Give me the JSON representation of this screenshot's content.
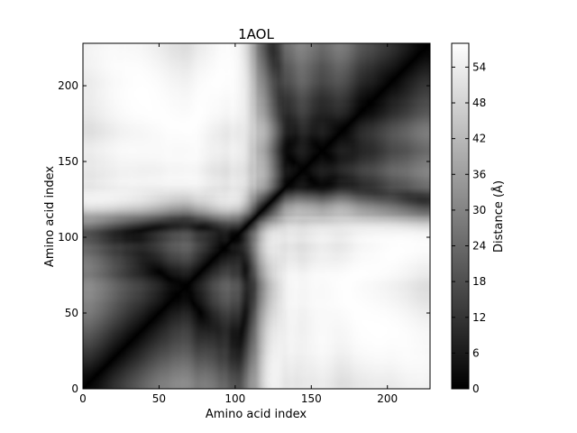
{
  "chart_data": {
    "type": "heatmap",
    "title": "1AOL",
    "xlabel": "Amino acid index",
    "ylabel": "Amino acid index",
    "n": 228,
    "xlim": [
      0,
      228
    ],
    "ylim": [
      0,
      228
    ],
    "xticks": [
      0,
      50,
      100,
      150,
      200
    ],
    "yticks": [
      0,
      50,
      100,
      150,
      200
    ],
    "colormap": "gray",
    "colorbar": {
      "label": "Distance (Å)",
      "range": [
        0,
        58
      ],
      "ticks": [
        0,
        6,
        12,
        18,
        24,
        30,
        36,
        42,
        48,
        54
      ]
    },
    "diagonal_value": 0,
    "description": "Symmetric pairwise C-alpha distance matrix; zero along the main diagonal, bright regions (~50 Å) near residues 60-80 vs 100-150 and 110-140 vs 180-200."
  }
}
